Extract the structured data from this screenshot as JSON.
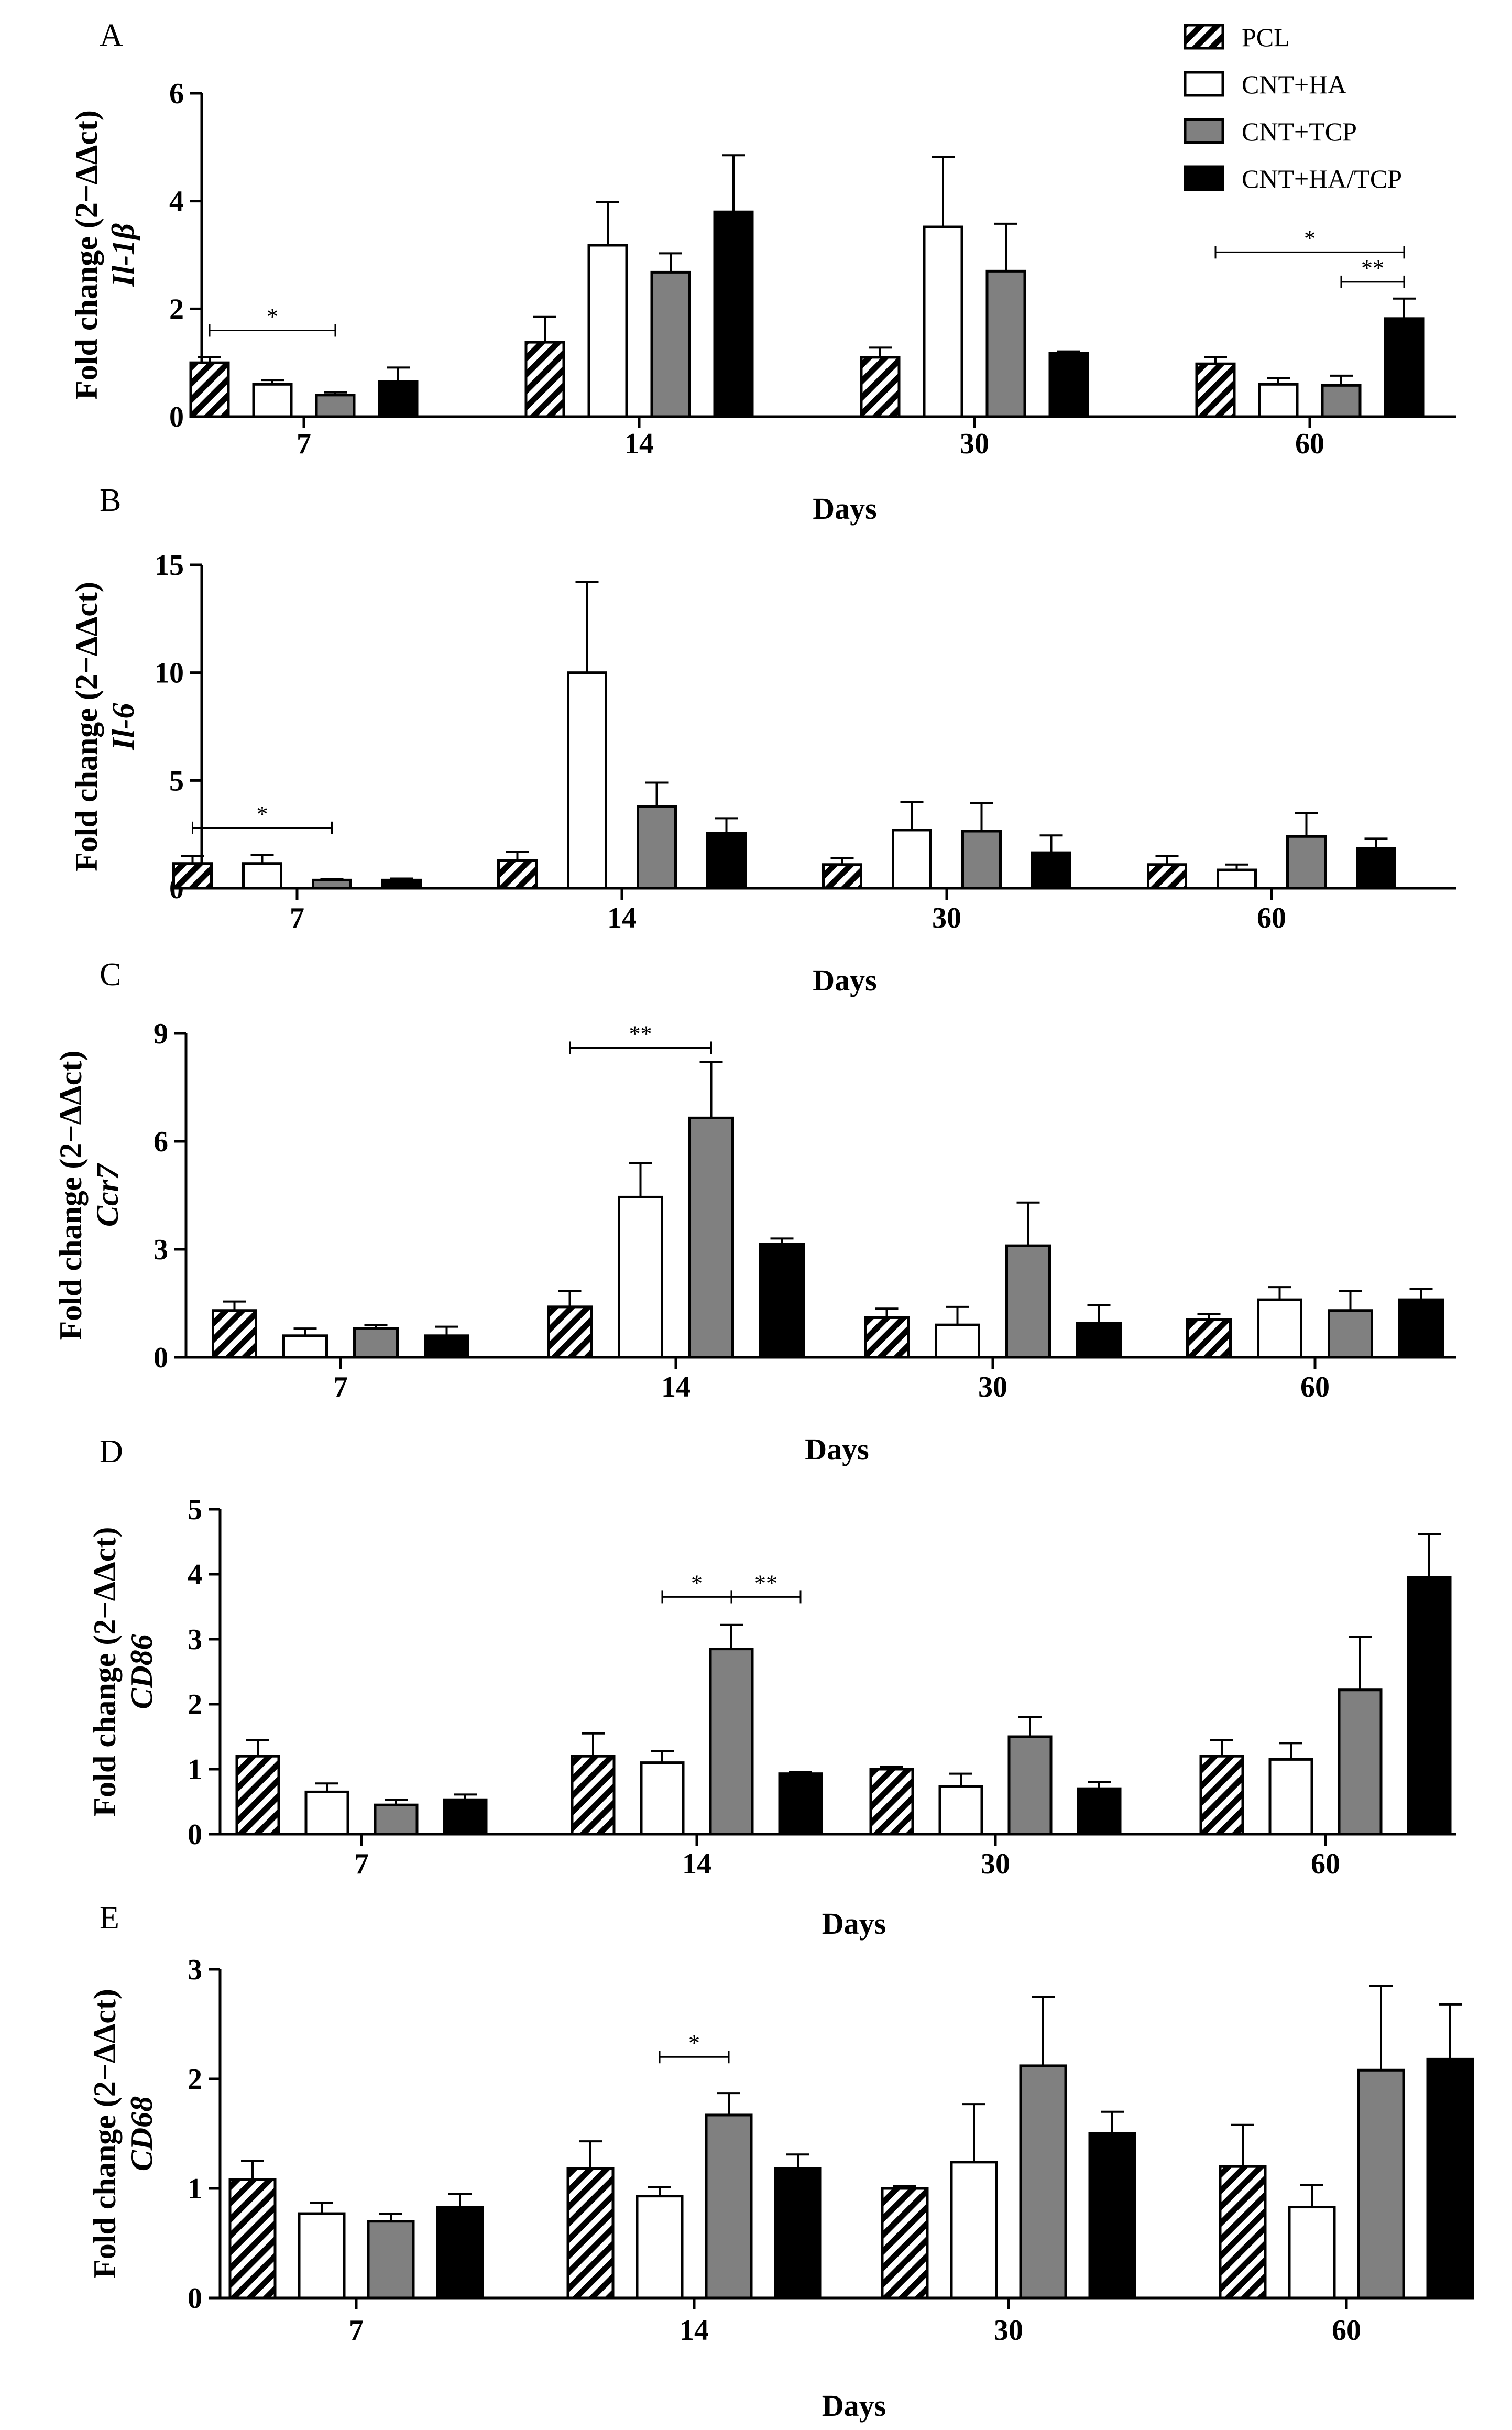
{
  "legend": [
    {
      "name": "PCL",
      "style": "hatched"
    },
    {
      "name": "CNT+HA",
      "style": "white"
    },
    {
      "name": "CNT+TCP",
      "style": "gray"
    },
    {
      "name": "CNT+HA/TCP",
      "style": "black"
    }
  ],
  "colors": {
    "white": "#ffffff",
    "gray": "#808080",
    "black": "#000000",
    "hatch": "#000000"
  },
  "chart_data": [
    {
      "type": "bar",
      "panel": "A",
      "ylabel": "Fold change (2−ΔΔct)",
      "gene": "Il-1β",
      "xlabel": "Days",
      "categories": [
        "7",
        "14",
        "30",
        "60"
      ],
      "ylim": [
        0,
        6
      ],
      "yticks": [
        "0",
        "2",
        "4",
        "6"
      ],
      "series": [
        {
          "name": "PCL",
          "values": [
            1.0,
            1.38,
            1.1,
            0.98
          ],
          "errors": [
            0.1,
            0.47,
            0.18,
            0.12
          ]
        },
        {
          "name": "CNT+HA",
          "values": [
            0.6,
            3.18,
            3.52,
            0.6
          ],
          "errors": [
            0.08,
            0.8,
            1.3,
            0.12
          ]
        },
        {
          "name": "CNT+TCP",
          "values": [
            0.4,
            2.68,
            2.7,
            0.58
          ],
          "errors": [
            0.05,
            0.35,
            0.88,
            0.18
          ]
        },
        {
          "name": "CNT+HA/TCP",
          "values": [
            0.65,
            3.8,
            1.18,
            1.82
          ],
          "errors": [
            0.26,
            1.05,
            0.03,
            0.37
          ]
        }
      ],
      "significance": [
        {
          "cat": 0,
          "from": 0,
          "to": 2,
          "level": 1.6,
          "label": "*"
        },
        {
          "cat": 3,
          "from": 0,
          "to": 3,
          "level": 3.05,
          "label": "*"
        },
        {
          "cat": 3,
          "from": 2,
          "to": 3,
          "level": 2.5,
          "label": "**"
        }
      ]
    },
    {
      "type": "bar",
      "panel": "B",
      "ylabel": "Fold change (2−ΔΔct)",
      "gene": "Il-6",
      "xlabel": "Days",
      "categories": [
        "7",
        "14",
        "30",
        "60"
      ],
      "ylim": [
        0,
        15
      ],
      "yticks": [
        "0",
        "5",
        "10",
        "15"
      ],
      "series": [
        {
          "name": "PCL",
          "values": [
            1.15,
            1.3,
            1.1,
            1.1
          ],
          "errors": [
            0.35,
            0.4,
            0.3,
            0.4
          ]
        },
        {
          "name": "CNT+HA",
          "values": [
            1.15,
            10.0,
            2.7,
            0.85
          ],
          "errors": [
            0.4,
            4.2,
            1.3,
            0.25
          ]
        },
        {
          "name": "CNT+TCP",
          "values": [
            0.38,
            3.8,
            2.65,
            2.4
          ],
          "errors": [
            0.05,
            1.1,
            1.3,
            1.1
          ]
        },
        {
          "name": "CNT+HA/TCP",
          "values": [
            0.38,
            2.55,
            1.65,
            1.85
          ],
          "errors": [
            0.07,
            0.7,
            0.8,
            0.45
          ]
        }
      ],
      "significance": [
        {
          "cat": 0,
          "from": 0,
          "to": 2,
          "level": 2.8,
          "label": "*"
        }
      ]
    },
    {
      "type": "bar",
      "panel": "C",
      "ylabel": "Fold change (2−ΔΔct)",
      "gene": "Ccr7",
      "xlabel": "Days",
      "categories": [
        "7",
        "14",
        "30",
        "60"
      ],
      "ylim": [
        0,
        9
      ],
      "yticks": [
        "0",
        "3",
        "6",
        "9"
      ],
      "series": [
        {
          "name": "PCL",
          "values": [
            1.3,
            1.4,
            1.1,
            1.05
          ],
          "errors": [
            0.25,
            0.45,
            0.25,
            0.15
          ]
        },
        {
          "name": "CNT+HA",
          "values": [
            0.6,
            4.45,
            0.9,
            1.6
          ],
          "errors": [
            0.2,
            0.95,
            0.5,
            0.35
          ]
        },
        {
          "name": "CNT+TCP",
          "values": [
            0.8,
            6.65,
            3.1,
            1.3
          ],
          "errors": [
            0.1,
            1.55,
            1.2,
            0.55
          ]
        },
        {
          "name": "CNT+HA/TCP",
          "values": [
            0.6,
            3.15,
            0.95,
            1.6
          ],
          "errors": [
            0.25,
            0.15,
            0.5,
            0.3
          ]
        }
      ],
      "significance": [
        {
          "cat": 1,
          "from": 0,
          "to": 2,
          "level": 8.6,
          "label": "**"
        }
      ]
    },
    {
      "type": "bar",
      "panel": "D",
      "ylabel": "Fold change (2−ΔΔct)",
      "gene": "CD86",
      "xlabel": "Days",
      "categories": [
        "7",
        "14",
        "30",
        "60"
      ],
      "ylim": [
        0,
        5
      ],
      "yticks": [
        "0",
        "1",
        "2",
        "3",
        "4",
        "5"
      ],
      "series": [
        {
          "name": "PCL",
          "values": [
            1.2,
            1.2,
            1.0,
            1.2
          ],
          "errors": [
            0.25,
            0.35,
            0.04,
            0.25
          ]
        },
        {
          "name": "CNT+HA",
          "values": [
            0.65,
            1.1,
            0.73,
            1.15
          ],
          "errors": [
            0.13,
            0.18,
            0.2,
            0.25
          ]
        },
        {
          "name": "CNT+TCP",
          "values": [
            0.45,
            2.85,
            1.5,
            2.22
          ],
          "errors": [
            0.08,
            0.37,
            0.3,
            0.82
          ]
        },
        {
          "name": "CNT+HA/TCP",
          "values": [
            0.53,
            0.93,
            0.7,
            3.95
          ],
          "errors": [
            0.08,
            0.03,
            0.1,
            0.67
          ]
        }
      ],
      "significance": [
        {
          "cat": 1,
          "from": 1,
          "to": 2,
          "level": 3.65,
          "label": "*"
        },
        {
          "cat": 1,
          "from": 2,
          "to": 3,
          "level": 3.65,
          "label": "**"
        }
      ]
    },
    {
      "type": "bar",
      "panel": "E",
      "ylabel": "Fold change (2−ΔΔct)",
      "gene": "CD68",
      "xlabel": "Days",
      "categories": [
        "7",
        "14",
        "30",
        "60"
      ],
      "ylim": [
        0,
        3
      ],
      "yticks": [
        "0",
        "1",
        "2",
        "3"
      ],
      "series": [
        {
          "name": "PCL",
          "values": [
            1.08,
            1.18,
            1.0,
            1.2
          ],
          "errors": [
            0.17,
            0.25,
            0.02,
            0.38
          ]
        },
        {
          "name": "CNT+HA",
          "values": [
            0.77,
            0.93,
            1.24,
            0.83
          ],
          "errors": [
            0.1,
            0.08,
            0.53,
            0.2
          ]
        },
        {
          "name": "CNT+TCP",
          "values": [
            0.7,
            1.67,
            2.12,
            2.08
          ],
          "errors": [
            0.07,
            0.2,
            0.63,
            0.77
          ]
        },
        {
          "name": "CNT+HA/TCP",
          "values": [
            0.83,
            1.18,
            1.5,
            2.18
          ],
          "errors": [
            0.12,
            0.13,
            0.2,
            0.5
          ]
        }
      ],
      "significance": [
        {
          "cat": 1,
          "from": 1,
          "to": 2,
          "level": 2.2,
          "label": "*"
        }
      ]
    }
  ]
}
